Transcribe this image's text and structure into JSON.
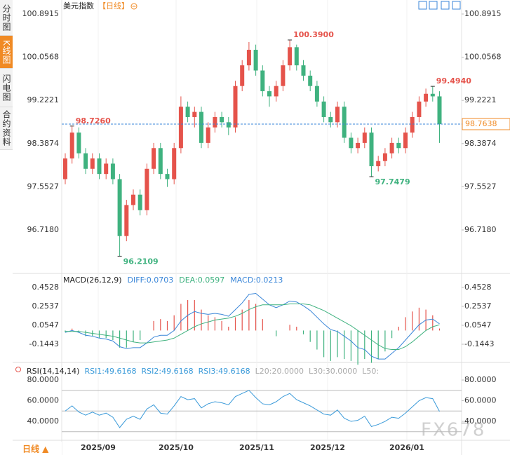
{
  "tabs": [
    "分时图",
    "K线图",
    "闪电图",
    "合约资料"
  ],
  "header": {
    "name": "美元指数",
    "period": "【日线】"
  },
  "period_button": "日线 ▲",
  "watermark": "FX678",
  "chart_data": {
    "type": "candlestick",
    "ylim": [
      95.878,
      101.054
    ],
    "yticks": [
      100.8915,
      100.0568,
      99.2221,
      98.3874,
      97.5527,
      {
        "value": 96.718,
        "label": "96.7180"
      }
    ],
    "up_color": "#e5534b",
    "down_color": "#3fb27f",
    "current_price": 98.7638,
    "annotations": [
      {
        "value": 98.726,
        "label": "98.7260",
        "color": "#e5534b"
      },
      {
        "value": 100.39,
        "label": "100.3900",
        "color": "#e5534b"
      },
      {
        "value": 99.494,
        "label": "99.4940",
        "color": "#e5534b"
      },
      {
        "value": 97.7479,
        "color": "#3fb27f"
      },
      {
        "value": 96.2109,
        "color": "#3fb27f"
      }
    ],
    "x_labels": [
      "2025/09",
      "2025/10",
      "2025/11",
      "2025/12",
      "2026/01"
    ],
    "candles": {
      "open": [
        97.7,
        98.1,
        98.6,
        98.2,
        97.9,
        98.1,
        97.8,
        98.0,
        97.7,
        96.6,
        97.2,
        97.4,
        97.1,
        97.9,
        98.3,
        97.8,
        97.7,
        98.3,
        99.1,
        98.9,
        99.0,
        98.4,
        98.7,
        98.9,
        98.8,
        98.7,
        99.5,
        99.9,
        100.2,
        99.8,
        99.4,
        99.3,
        99.5,
        99.9,
        100.25,
        99.9,
        99.7,
        99.5,
        99.2,
        98.9,
        98.8,
        99.1,
        98.5,
        98.3,
        98.4,
        98.6,
        97.95,
        98.05,
        98.2,
        98.4,
        98.3,
        98.6,
        98.9,
        99.2,
        99.35,
        99.3
      ],
      "high": [
        98.2,
        98.726,
        98.7,
        98.3,
        98.2,
        98.2,
        98.1,
        98.1,
        97.8,
        97.3,
        97.5,
        97.5,
        98.0,
        98.4,
        98.4,
        97.9,
        98.4,
        99.3,
        99.2,
        99.1,
        99.1,
        98.8,
        99.0,
        99.0,
        98.9,
        99.6,
        100.0,
        100.35,
        100.3,
        99.9,
        99.5,
        99.6,
        100.0,
        100.39,
        100.3,
        100.0,
        99.8,
        99.6,
        99.3,
        99.0,
        99.2,
        99.2,
        98.6,
        98.5,
        98.7,
        98.7,
        98.15,
        98.3,
        98.5,
        98.5,
        98.7,
        99.0,
        99.3,
        99.45,
        99.494,
        99.4
      ],
      "low": [
        97.6,
        98.0,
        98.1,
        97.8,
        97.8,
        97.7,
        97.7,
        97.6,
        96.2109,
        96.5,
        97.1,
        97.0,
        97.0,
        97.8,
        97.7,
        97.55,
        97.6,
        98.2,
        98.8,
        98.7,
        98.3,
        98.3,
        98.6,
        98.7,
        98.55,
        98.6,
        99.4,
        99.8,
        99.7,
        99.3,
        99.1,
        99.2,
        99.4,
        99.8,
        99.8,
        99.6,
        99.4,
        99.1,
        98.8,
        98.7,
        98.7,
        98.4,
        98.2,
        98.2,
        98.3,
        97.7479,
        97.85,
        97.95,
        98.1,
        98.2,
        98.2,
        98.5,
        98.8,
        99.1,
        99.2,
        98.4
      ],
      "close": [
        98.1,
        98.6,
        98.2,
        97.9,
        98.1,
        97.8,
        98.0,
        97.7,
        96.6,
        97.2,
        97.4,
        97.1,
        97.9,
        98.3,
        97.8,
        97.7,
        98.3,
        99.1,
        98.9,
        99.0,
        98.4,
        98.7,
        98.9,
        98.8,
        98.7,
        99.5,
        99.9,
        100.2,
        99.8,
        99.4,
        99.3,
        99.5,
        99.9,
        100.25,
        99.9,
        99.7,
        99.5,
        99.2,
        98.9,
        98.8,
        99.1,
        98.5,
        98.3,
        98.4,
        98.6,
        97.95,
        98.05,
        98.2,
        98.4,
        98.3,
        98.6,
        98.9,
        99.2,
        99.35,
        99.3,
        98.7638
      ]
    },
    "macd": {
      "title": "MACD(26,12,9)",
      "diff_label": "DIFF:0.0703",
      "dea_label": "DEA:0.0597",
      "macd_label": "MACD:0.0213",
      "ylim": [
        -0.3212,
        0.5634
      ],
      "yticks": [
        0.4528,
        0.2537,
        0.0547,
        -0.1443
      ],
      "diff_color": "#3a86d8",
      "dea_color": "#3fb27f",
      "diff": [
        -0.02,
        0.0,
        -0.02,
        -0.05,
        -0.06,
        -0.08,
        -0.09,
        -0.11,
        -0.17,
        -0.19,
        -0.18,
        -0.18,
        -0.13,
        -0.07,
        -0.05,
        -0.05,
        0.0,
        0.1,
        0.16,
        0.2,
        0.18,
        0.17,
        0.18,
        0.17,
        0.15,
        0.22,
        0.29,
        0.38,
        0.39,
        0.33,
        0.27,
        0.24,
        0.27,
        0.31,
        0.3,
        0.26,
        0.21,
        0.14,
        0.07,
        0.01,
        -0.01,
        -0.06,
        -0.11,
        -0.18,
        -0.2,
        -0.27,
        -0.3,
        -0.3,
        -0.24,
        -0.18,
        -0.1,
        -0.02,
        0.06,
        0.11,
        0.12,
        0.0703
      ],
      "dea": [
        -0.01,
        -0.01,
        -0.01,
        -0.02,
        -0.03,
        -0.04,
        -0.05,
        -0.06,
        -0.08,
        -0.1,
        -0.12,
        -0.13,
        -0.13,
        -0.12,
        -0.11,
        -0.1,
        -0.08,
        -0.04,
        0.0,
        0.04,
        0.07,
        0.09,
        0.11,
        0.12,
        0.13,
        0.15,
        0.18,
        0.22,
        0.25,
        0.27,
        0.27,
        0.27,
        0.27,
        0.28,
        0.28,
        0.28,
        0.27,
        0.24,
        0.21,
        0.17,
        0.13,
        0.09,
        0.05,
        0.0,
        -0.05,
        -0.1,
        -0.15,
        -0.19,
        -0.2,
        -0.2,
        -0.17,
        -0.12,
        -0.06,
        0.0,
        0.04,
        0.0597
      ],
      "hist": [
        -0.02,
        0.02,
        -0.02,
        -0.06,
        -0.06,
        -0.08,
        -0.08,
        -0.1,
        -0.18,
        -0.18,
        -0.12,
        -0.1,
        0.0,
        0.1,
        0.12,
        0.1,
        0.16,
        0.28,
        0.32,
        0.32,
        0.22,
        0.16,
        0.14,
        0.1,
        0.04,
        0.14,
        0.22,
        0.32,
        0.28,
        0.12,
        0.0,
        -0.06,
        0.0,
        0.06,
        0.04,
        -0.04,
        -0.12,
        -0.2,
        -0.28,
        -0.32,
        -0.28,
        -0.3,
        -0.32,
        -0.36,
        -0.3,
        -0.34,
        -0.3,
        -0.22,
        -0.08,
        0.04,
        0.14,
        0.2,
        0.24,
        0.22,
        0.16,
        0.0213
      ]
    },
    "rsi": {
      "title": "RSI(14,14,14)",
      "rsi1_label": "RSI1:49.6168",
      "rsi2_label": "RSI2:49.6168",
      "rsi3_label": "RSI3:49.6168",
      "l20_label": "L20:20.0000",
      "l30_label": "L30:30.0000",
      "l50_label": "L50:",
      "ylim": [
        21.7,
        93.6
      ],
      "yticks": [
        {
          "value": 80,
          "label": "80.0000"
        },
        {
          "value": 60,
          "label": "60.0000"
        },
        {
          "value": 40,
          "label": "40.0000"
        }
      ],
      "levels": [
        70,
        50,
        30
      ],
      "color": "#3a9ad9",
      "values": [
        50,
        55,
        49,
        46,
        49,
        46,
        48,
        44,
        34,
        42,
        45,
        42,
        52,
        56,
        48,
        47,
        55,
        64,
        61,
        62,
        53,
        57,
        59,
        58,
        56,
        64,
        67,
        70,
        63,
        57,
        56,
        59,
        64,
        67,
        61,
        58,
        55,
        51,
        47,
        46,
        51,
        43,
        40,
        41,
        45,
        35,
        37,
        40,
        44,
        43,
        48,
        54,
        60,
        63,
        62,
        49.6168
      ]
    }
  }
}
